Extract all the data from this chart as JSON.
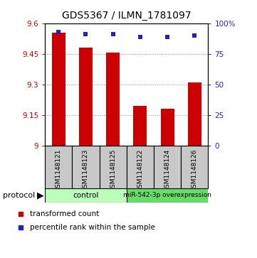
{
  "title": "GDS5367 / ILMN_1781097",
  "samples": [
    "GSM1148121",
    "GSM1148123",
    "GSM1148125",
    "GSM1148122",
    "GSM1148124",
    "GSM1148126"
  ],
  "bar_values": [
    9.555,
    9.48,
    9.455,
    9.195,
    9.18,
    9.31
  ],
  "dot_values": [
    93,
    91,
    91,
    89,
    89,
    90
  ],
  "ylim_left": [
    9.0,
    9.6
  ],
  "ylim_right": [
    0,
    100
  ],
  "yticks_left": [
    9.0,
    9.15,
    9.3,
    9.45,
    9.6
  ],
  "ytick_labels_left": [
    "9",
    "9.15",
    "9.3",
    "9.45",
    "9.6"
  ],
  "yticks_right": [
    0,
    25,
    50,
    75,
    100
  ],
  "ytick_labels_right": [
    "0",
    "25",
    "50",
    "75",
    "100%"
  ],
  "bar_color": "#cc0000",
  "dot_color": "#2222bb",
  "bar_bottom": 9.0,
  "control_color": "#bbffbb",
  "mir_color": "#66dd66",
  "protocol_label": "protocol",
  "legend_bar_label": "transformed count",
  "legend_dot_label": "percentile rank within the sample",
  "tick_color_left": "#cc0000",
  "tick_color_right": "#2222bb",
  "sample_box_color": "#c8c8c8",
  "grid_color": "#888888"
}
